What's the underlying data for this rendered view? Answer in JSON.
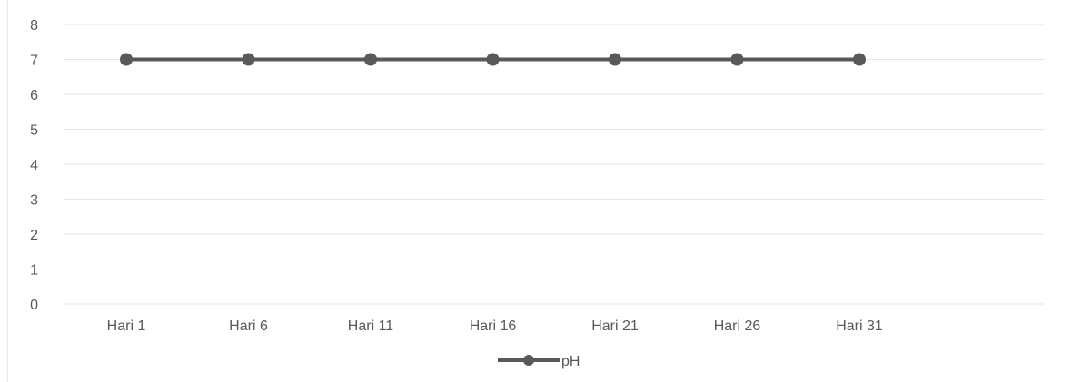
{
  "chart_data": {
    "type": "line",
    "categories": [
      "Hari 1",
      "Hari 6",
      "Hari 11",
      "Hari 16",
      "Hari 21",
      "Hari 26",
      "Hari 31"
    ],
    "series": [
      {
        "name": "pH",
        "values": [
          7,
          7,
          7,
          7,
          7,
          7,
          7
        ],
        "color": "#595959"
      }
    ],
    "ylim": [
      0,
      8
    ],
    "yticks": [
      "0",
      "1",
      "2",
      "3",
      "4",
      "5",
      "6",
      "7",
      "8"
    ],
    "grid": true,
    "legend": "bottom",
    "colors": {
      "gridline": "#e6e6e6",
      "text": "#595959",
      "series": "#595959"
    }
  }
}
